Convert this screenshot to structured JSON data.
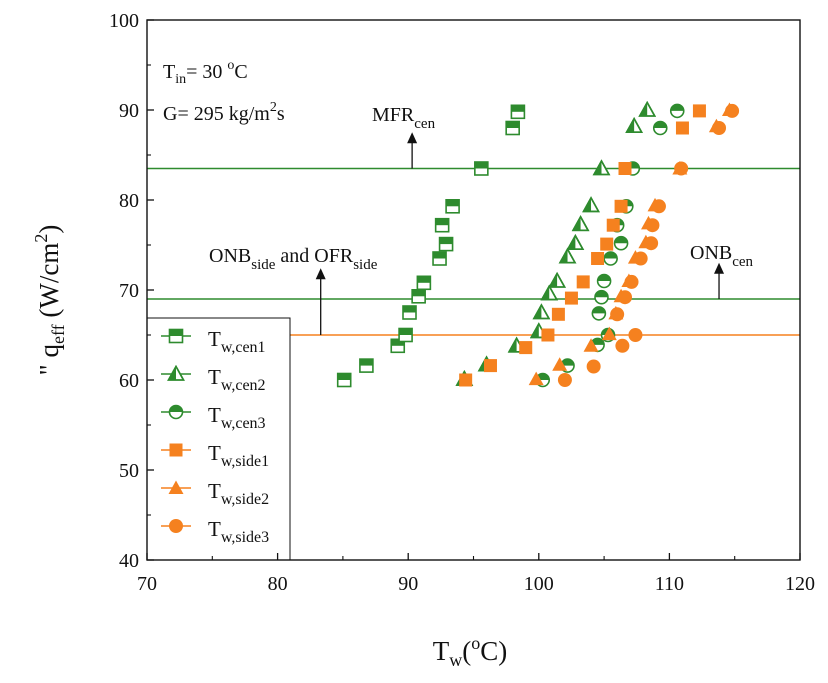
{
  "chart_data": {
    "type": "scatter",
    "xlim": [
      70,
      120
    ],
    "ylim": [
      40,
      100
    ],
    "x_ticks": [
      70,
      80,
      90,
      100,
      110,
      120
    ],
    "y_ticks": [
      40,
      50,
      60,
      70,
      80,
      90,
      100
    ],
    "x_tick_labels": [
      "70",
      "80",
      "90",
      "100",
      "110",
      "120"
    ],
    "y_tick_labels": [
      "40",
      "50",
      "60",
      "70",
      "80",
      "90",
      "100"
    ],
    "xlabel": {
      "main": "T",
      "sub": "w",
      "open": "(",
      "sup": "o",
      "unit": "C)"
    },
    "ylabel": {
      "prime": "\"",
      "main": "q",
      "sub": "eff",
      "open": "(W/cm",
      "sup": "2",
      "close": ")"
    },
    "grid": false,
    "legend_placement": "bottom-left",
    "colors": {
      "green": "#2e8b2e",
      "orange": "#f5811f",
      "axis": "#111111"
    },
    "hlines": [
      {
        "y": 83.5,
        "color": "#2e8b2e"
      },
      {
        "y": 69.0,
        "color": "#2e8b2e"
      },
      {
        "y": 65.0,
        "color": "#f5811f"
      }
    ],
    "annotations": {
      "tin": {
        "main": "T",
        "sub": "in",
        "eq": "= 30 ",
        "sup": "o",
        "unit": "C"
      },
      "g": {
        "pre": "G= 295 kg/m",
        "sup": "2",
        "post": "s"
      },
      "mfr": {
        "main": "MFR",
        "sub": "cen",
        "arrow_x": 90.3,
        "arrow_from": 83.5,
        "arrow_to": 87.3
      },
      "onb_side": {
        "a": "ONB",
        "asub": "side",
        "mid": " and OFR",
        "bsub": "side",
        "arrow_x": 83.3,
        "arrow_from": 65.0,
        "arrow_to": 72.2
      },
      "onb_cen": {
        "main": "ONB",
        "sub": "cen",
        "arrow_x": 113.8,
        "arrow_from": 69.0,
        "arrow_to": 72.8
      }
    },
    "series": [
      {
        "name": "Tw,cen1",
        "label_main": "T",
        "label_sub": "w,cen1",
        "marker": "square-half",
        "color": "#2e8b2e",
        "points": [
          [
            85.1,
            60.0
          ],
          [
            86.8,
            61.6
          ],
          [
            89.2,
            63.8
          ],
          [
            89.8,
            65.0
          ],
          [
            90.1,
            67.5
          ],
          [
            90.8,
            69.3
          ],
          [
            91.2,
            70.8
          ],
          [
            92.4,
            73.5
          ],
          [
            92.6,
            77.2
          ],
          [
            92.9,
            75.1
          ],
          [
            93.4,
            79.3
          ],
          [
            95.6,
            83.5
          ],
          [
            98.0,
            88.0
          ],
          [
            98.4,
            89.8
          ]
        ]
      },
      {
        "name": "Tw,cen2",
        "label_main": "T",
        "label_sub": "w,cen2",
        "marker": "triangle-half",
        "color": "#2e8b2e",
        "points": [
          [
            94.3,
            60.1
          ],
          [
            96.0,
            61.7
          ],
          [
            98.3,
            63.8
          ],
          [
            100.0,
            65.4
          ],
          [
            100.2,
            67.5
          ],
          [
            100.8,
            69.6
          ],
          [
            101.4,
            71.0
          ],
          [
            102.2,
            73.7
          ],
          [
            102.8,
            75.2
          ],
          [
            103.2,
            77.3
          ],
          [
            104.0,
            79.4
          ],
          [
            104.8,
            83.5
          ],
          [
            107.3,
            88.2
          ],
          [
            108.3,
            90.0
          ]
        ]
      },
      {
        "name": "Tw,cen3",
        "label_main": "T",
        "label_sub": "w,cen3",
        "marker": "circle-half",
        "color": "#2e8b2e",
        "points": [
          [
            100.3,
            60.0
          ],
          [
            102.2,
            61.6
          ],
          [
            104.5,
            63.9
          ],
          [
            105.3,
            65.0
          ],
          [
            104.6,
            67.4
          ],
          [
            104.8,
            69.2
          ],
          [
            105.0,
            71.0
          ],
          [
            105.5,
            73.5
          ],
          [
            106.3,
            75.2
          ],
          [
            106.0,
            77.2
          ],
          [
            106.7,
            79.3
          ],
          [
            107.2,
            83.5
          ],
          [
            109.3,
            88.0
          ],
          [
            110.6,
            89.9
          ]
        ]
      },
      {
        "name": "Tw,side1",
        "label_main": "T",
        "label_sub": "w,side1",
        "marker": "square",
        "color": "#f5811f",
        "points": [
          [
            94.4,
            60.0
          ],
          [
            96.3,
            61.6
          ],
          [
            99.0,
            63.6
          ],
          [
            100.7,
            65.0
          ],
          [
            101.5,
            67.3
          ],
          [
            102.5,
            69.1
          ],
          [
            103.4,
            70.9
          ],
          [
            104.5,
            73.5
          ],
          [
            105.2,
            75.1
          ],
          [
            105.7,
            77.2
          ],
          [
            106.3,
            79.3
          ],
          [
            106.6,
            83.5
          ],
          [
            111.0,
            88.0
          ],
          [
            112.3,
            89.9
          ]
        ]
      },
      {
        "name": "Tw,side2",
        "label_main": "T",
        "label_sub": "w,side2",
        "marker": "triangle",
        "color": "#f5811f",
        "points": [
          [
            99.8,
            60.1
          ],
          [
            101.6,
            61.7
          ],
          [
            104.0,
            63.8
          ],
          [
            105.4,
            65.1
          ],
          [
            105.9,
            67.4
          ],
          [
            106.3,
            69.3
          ],
          [
            106.9,
            71.0
          ],
          [
            107.4,
            73.6
          ],
          [
            108.2,
            75.3
          ],
          [
            108.4,
            77.4
          ],
          [
            108.9,
            79.4
          ],
          [
            110.8,
            83.5
          ],
          [
            113.6,
            88.2
          ],
          [
            114.6,
            90.0
          ]
        ]
      },
      {
        "name": "Tw,side3",
        "label_main": "T",
        "label_sub": "w,side3",
        "marker": "circle",
        "color": "#f5811f",
        "points": [
          [
            102.0,
            60.0
          ],
          [
            104.2,
            61.5
          ],
          [
            106.4,
            63.8
          ],
          [
            107.4,
            65.0
          ],
          [
            106.0,
            67.3
          ],
          [
            106.6,
            69.2
          ],
          [
            107.1,
            70.9
          ],
          [
            107.8,
            73.5
          ],
          [
            108.6,
            75.2
          ],
          [
            108.7,
            77.2
          ],
          [
            109.2,
            79.3
          ],
          [
            110.9,
            83.5
          ],
          [
            113.8,
            88.0
          ],
          [
            114.8,
            89.9
          ]
        ]
      }
    ]
  }
}
